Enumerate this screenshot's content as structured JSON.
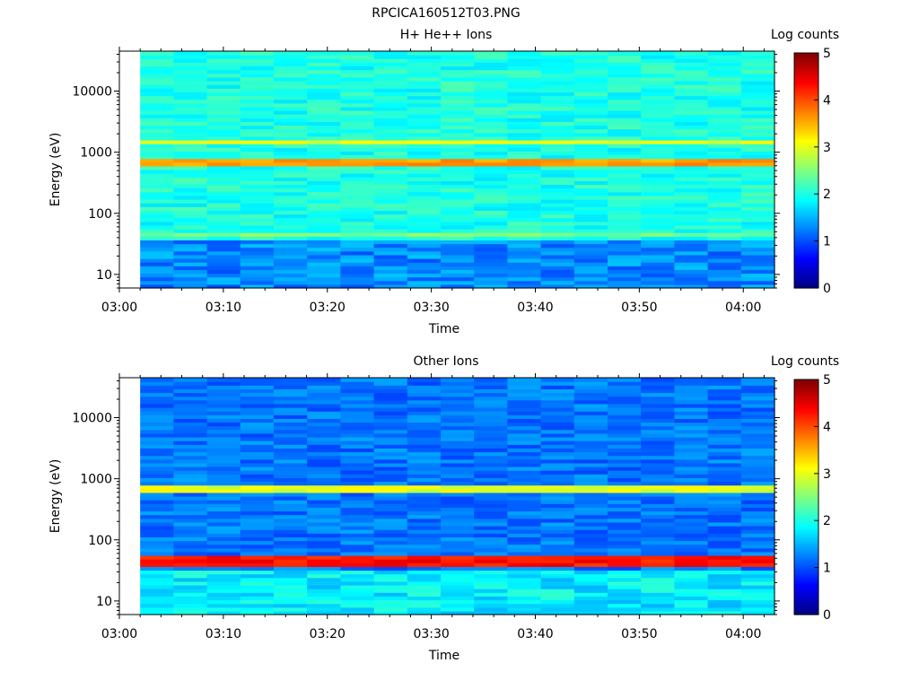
{
  "figure_title": "RPCICA160512T03.PNG",
  "chart_data": [
    {
      "type": "heatmap",
      "title": "H+ He++ Ions",
      "xlabel": "Time",
      "ylabel": "Energy (eV)",
      "x_ticks": [
        "03:00",
        "03:10",
        "03:20",
        "03:30",
        "03:40",
        "03:50",
        "04:00"
      ],
      "xlim": [
        "03:00",
        "04:03"
      ],
      "data_time_range": [
        "03:02",
        "04:03"
      ],
      "y_scale": "log",
      "y_ticks": [
        10,
        100,
        1000,
        10000
      ],
      "y_tick_labels": [
        "10",
        "100",
        "1000",
        "10000"
      ],
      "ylim": [
        6,
        45000
      ],
      "colorbar": {
        "label": "Log counts",
        "ticks": [
          0,
          1,
          2,
          3,
          4,
          5
        ],
        "range": [
          0,
          5
        ],
        "colormap": "jet"
      },
      "background_log_counts": 2.0,
      "bands": [
        {
          "energy_low_eV": 40,
          "energy_high_eV": 52,
          "log_counts": 2.5
        },
        {
          "energy_low_eV": 600,
          "energy_high_eV": 820,
          "log_counts": 3.6
        },
        {
          "energy_low_eV": 1350,
          "energy_high_eV": 1600,
          "log_counts": 3.0
        }
      ],
      "low_energy_region": {
        "energy_below_eV": 35,
        "log_counts": 1.3
      }
    },
    {
      "type": "heatmap",
      "title": "Other Ions",
      "xlabel": "Time",
      "ylabel": "Energy (eV)",
      "x_ticks": [
        "03:00",
        "03:10",
        "03:20",
        "03:30",
        "03:40",
        "03:50",
        "04:00"
      ],
      "xlim": [
        "03:00",
        "04:03"
      ],
      "data_time_range": [
        "03:02",
        "04:03"
      ],
      "y_scale": "log",
      "y_ticks": [
        10,
        100,
        1000,
        10000
      ],
      "y_tick_labels": [
        "10",
        "100",
        "1000",
        "10000"
      ],
      "ylim": [
        6,
        45000
      ],
      "colorbar": {
        "label": "Log counts",
        "ticks": [
          0,
          1,
          2,
          3,
          4,
          5
        ],
        "range": [
          0,
          5
        ],
        "colormap": "jet"
      },
      "background_log_counts": 1.2,
      "bands": [
        {
          "energy_low_eV": 35,
          "energy_high_eV": 55,
          "log_counts": 4.3
        },
        {
          "energy_low_eV": 620,
          "energy_high_eV": 800,
          "log_counts": 3.0
        }
      ],
      "low_energy_region": {
        "energy_below_eV": 30,
        "log_counts": 1.8
      }
    }
  ]
}
